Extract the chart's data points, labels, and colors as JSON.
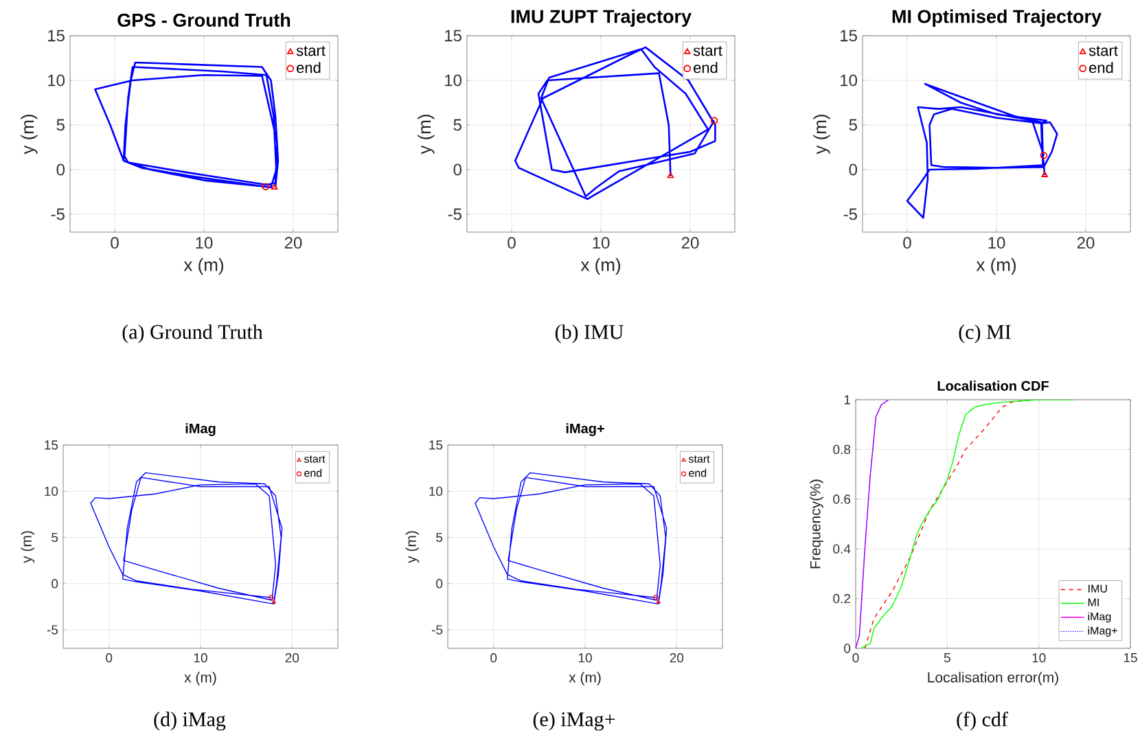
{
  "chart_data": [
    {
      "type": "line",
      "title": "GPS - Ground Truth",
      "xlabel": "x (m)",
      "ylabel": "y (m)",
      "xlim": [
        -5,
        25
      ],
      "ylim": [
        -7,
        15
      ],
      "xticks": [
        0,
        10,
        20
      ],
      "yticks": [
        -5,
        0,
        5,
        10,
        15
      ],
      "grid": true,
      "legend": "top right",
      "annotations": [
        "(a)  Ground Truth"
      ],
      "series": [
        {
          "type": "line",
          "color": "#0000ff",
          "x": [
            18,
            18.3,
            18,
            17.5,
            16.5,
            8,
            2.3,
            1.8,
            1.2,
            1,
            3,
            9,
            17.5,
            18.1,
            17.8,
            17,
            12,
            2,
            1.5,
            1.1,
            1.5,
            8,
            17,
            18,
            18.2,
            16.5,
            10,
            2,
            -2.2,
            -0.5,
            1,
            4,
            10,
            16.9
          ],
          "values": [
            -2,
            1,
            6,
            10,
            11.5,
            11.8,
            12,
            10,
            5,
            1,
            0.2,
            -0.8,
            -2,
            0,
            6,
            10.6,
            11,
            11.5,
            8,
            1.5,
            0.8,
            -0.3,
            -1.7,
            -1.5,
            3,
            10.5,
            10.6,
            10,
            9,
            5,
            1,
            0,
            -1.2,
            -1.9
          ]
        },
        {
          "type": "scatter",
          "name": "start",
          "marker": "triangle",
          "color": "#ff0000",
          "x": [
            17.9
          ],
          "values": [
            -2.0
          ]
        },
        {
          "type": "scatter",
          "name": "end",
          "marker": "circle",
          "color": "#ff0000",
          "x": [
            16.9
          ],
          "values": [
            -1.9
          ]
        }
      ]
    },
    {
      "type": "line",
      "title": "IMU ZUPT  Trajectory",
      "xlabel": "x (m)",
      "ylabel": "y (m)",
      "xlim": [
        -5,
        25
      ],
      "ylim": [
        -7,
        15
      ],
      "xticks": [
        0,
        10,
        20
      ],
      "yticks": [
        -5,
        0,
        5,
        10,
        15
      ],
      "grid": true,
      "legend": "top right",
      "annotations": [
        "(b)  IMU"
      ],
      "series": [
        {
          "type": "line",
          "color": "#0000ff",
          "x": [
            17.8,
            17.6,
            16.5,
            4,
            3,
            4.5,
            6,
            20,
            22.8,
            22.8,
            19.8,
            15,
            13.5,
            3.5,
            0.4,
            0.8,
            8.5,
            9,
            22,
            19.5,
            16,
            14.5,
            4.2,
            3.3,
            8.3,
            9.5,
            12,
            20.5,
            22.7
          ],
          "values": [
            -0.7,
            5,
            10.8,
            10,
            8.5,
            0,
            -0.3,
            2,
            3.2,
            5,
            10,
            13.7,
            13,
            8,
            1,
            0.2,
            -3.3,
            -3,
            4.5,
            8.5,
            11.5,
            13.5,
            10.3,
            8,
            -3,
            -2,
            -0.2,
            1.8,
            5.5
          ]
        },
        {
          "type": "scatter",
          "name": "start",
          "marker": "triangle",
          "color": "#ff0000",
          "x": [
            17.8
          ],
          "values": [
            -0.7
          ]
        },
        {
          "type": "scatter",
          "name": "end",
          "marker": "circle",
          "color": "#ff0000",
          "x": [
            22.7
          ],
          "values": [
            5.5
          ]
        }
      ]
    },
    {
      "type": "line",
      "title": "MI Optimised  Trajectory",
      "xlabel": "x (m)",
      "ylabel": "y (m)",
      "xlim": [
        -5,
        25
      ],
      "ylim": [
        -7,
        15
      ],
      "xticks": [
        0,
        10,
        20
      ],
      "yticks": [
        -5,
        0,
        5,
        10,
        15
      ],
      "grid": true,
      "legend": "top right",
      "annotations": [
        "(c)  MI"
      ],
      "series": [
        {
          "type": "line",
          "color": "#0000ff",
          "x": [
            15.4,
            15.2,
            15.1,
            16,
            16.8,
            16.2,
            15.3,
            10,
            4,
            2.7,
            2.5,
            3,
            5,
            10,
            15,
            15.6,
            10,
            6,
            2,
            7,
            12,
            15,
            15.2,
            8,
            2.5,
            1.5,
            0,
            1.8,
            2.3,
            2.2,
            1.2,
            3.5,
            6,
            14,
            15.3
          ],
          "values": [
            -0.6,
            1.6,
            5.2,
            5.3,
            4,
            2,
            0.3,
            0.2,
            0.3,
            0.5,
            5,
            6.2,
            6.8,
            5.8,
            5.2,
            5.5,
            6.2,
            7.5,
            9.6,
            7.8,
            6,
            5.3,
            0.5,
            0.1,
            0,
            -1.5,
            -3.5,
            -5.4,
            -1,
            3,
            7,
            6.8,
            7,
            5.5,
            1.6
          ]
        },
        {
          "type": "scatter",
          "name": "start",
          "marker": "triangle",
          "color": "#ff0000",
          "x": [
            15.4
          ],
          "values": [
            -0.6
          ]
        },
        {
          "type": "scatter",
          "name": "end",
          "marker": "circle",
          "color": "#ff0000",
          "x": [
            15.3
          ],
          "values": [
            1.6
          ]
        }
      ]
    },
    {
      "type": "line",
      "title": "iMag",
      "xlabel": "x (m)",
      "ylabel": "y (m)",
      "xlim": [
        -5,
        25
      ],
      "ylim": [
        -7,
        15
      ],
      "xticks": [
        0,
        10,
        20
      ],
      "yticks": [
        -5,
        0,
        5,
        10,
        15
      ],
      "grid": true,
      "legend": "top right",
      "annotations": [
        "(d)  iMag"
      ],
      "series": [
        {
          "type": "line",
          "color": "#0000ff",
          "x": [
            18,
            18.3,
            18.8,
            18.2,
            17,
            12,
            4,
            3,
            2,
            1.5,
            3,
            10,
            18,
            18.5,
            18.9,
            17.5,
            10,
            3.5,
            2.5,
            1.6,
            5,
            12,
            17.8,
            18.2,
            17.5,
            16,
            10,
            5,
            0,
            -1.5,
            -2,
            0,
            1.5,
            3,
            9,
            17.7
          ],
          "values": [
            -2,
            0,
            5,
            9.5,
            10.8,
            11,
            12,
            11,
            6,
            0.5,
            0.2,
            -0.8,
            -2.2,
            1,
            6,
            10.5,
            10.5,
            11.5,
            8,
            2.5,
            1.5,
            -0.5,
            -1.8,
            2,
            9.5,
            10.8,
            10.7,
            9.7,
            9.2,
            9.3,
            8.7,
            4,
            1,
            0.3,
            -0.6,
            -1.5
          ]
        },
        {
          "type": "scatter",
          "name": "start",
          "marker": "triangle",
          "color": "#ff0000",
          "x": [
            18
          ],
          "values": [
            -2
          ]
        },
        {
          "type": "scatter",
          "name": "end",
          "marker": "circle",
          "color": "#ff0000",
          "x": [
            17.7
          ],
          "values": [
            -1.5
          ]
        }
      ]
    },
    {
      "type": "line",
      "title": "iMag+",
      "xlabel": "x (m)",
      "ylabel": "y (m)",
      "xlim": [
        -5,
        25
      ],
      "ylim": [
        -7,
        15
      ],
      "xticks": [
        0,
        10,
        20
      ],
      "yticks": [
        -5,
        0,
        5,
        10,
        15
      ],
      "grid": true,
      "legend": "top right",
      "annotations": [
        "(e)  iMag+"
      ],
      "series": [
        {
          "type": "line",
          "color": "#0000ff",
          "x": [
            18,
            18.3,
            18.8,
            18.2,
            17,
            12,
            4,
            3,
            2,
            1.5,
            3,
            10,
            18,
            18.5,
            18.9,
            17.5,
            10,
            3.5,
            2.5,
            1.6,
            5,
            12,
            17.8,
            18.2,
            17.5,
            16,
            10,
            5,
            0,
            -1.5,
            -2,
            0,
            1.5,
            3,
            9,
            17.7
          ],
          "values": [
            -2,
            0,
            5,
            9.5,
            10.8,
            11,
            12,
            11,
            6,
            0.5,
            0.2,
            -0.8,
            -2.2,
            1,
            6,
            10.5,
            10.5,
            11.5,
            8,
            2.5,
            1.5,
            -0.5,
            -1.8,
            2,
            9.5,
            10.8,
            10.7,
            9.7,
            9.2,
            9.3,
            8.7,
            4,
            1,
            0.3,
            -0.6,
            -1.5
          ]
        },
        {
          "type": "scatter",
          "name": "start",
          "marker": "triangle",
          "color": "#ff0000",
          "x": [
            18
          ],
          "values": [
            -2
          ]
        },
        {
          "type": "scatter",
          "name": "end",
          "marker": "circle",
          "color": "#ff0000",
          "x": [
            17.7
          ],
          "values": [
            -1.5
          ]
        }
      ]
    },
    {
      "type": "line",
      "title": "Localisation CDF",
      "xlabel": "Localisation error(m)",
      "ylabel": "Frequency(%)",
      "xlim": [
        0,
        15
      ],
      "ylim": [
        0,
        1
      ],
      "xticks": [
        0,
        5,
        10,
        15
      ],
      "yticks": [
        0,
        0.2,
        0.4,
        0.6,
        0.8,
        1
      ],
      "grid": true,
      "legend": "bottom right",
      "annotations": [
        "(f)  cdf"
      ],
      "series": [
        {
          "name": "IMU",
          "color": "#ff0000",
          "line_style": "dashed",
          "x": [
            0.5,
            1,
            2,
            3,
            4,
            5,
            5.5,
            6,
            7,
            8,
            8.5,
            9.5
          ],
          "values": [
            0,
            0.12,
            0.23,
            0.37,
            0.55,
            0.67,
            0.73,
            0.8,
            0.88,
            0.97,
            0.99,
            1
          ]
        },
        {
          "name": "MI",
          "color": "#00ff00",
          "line_style": "solid",
          "x": [
            0.3,
            0.8,
            1,
            1.5,
            2,
            2.5,
            3,
            3.3,
            3.6,
            4,
            4.5,
            5,
            5.3,
            5.6,
            6,
            6.5,
            7,
            8,
            10,
            12
          ],
          "values": [
            0,
            0.02,
            0.08,
            0.13,
            0.17,
            0.25,
            0.37,
            0.45,
            0.5,
            0.55,
            0.6,
            0.68,
            0.75,
            0.85,
            0.94,
            0.97,
            0.98,
            0.99,
            1,
            1
          ]
        },
        {
          "name": "iMag",
          "color": "#ff00ff",
          "line_style": "solid",
          "x": [
            0,
            0.2,
            0.5,
            0.8,
            1,
            1.1,
            1.4,
            1.8
          ],
          "values": [
            0,
            0.05,
            0.4,
            0.7,
            0.85,
            0.93,
            0.98,
            1
          ]
        },
        {
          "name": "iMag+",
          "color": "#0000ff",
          "line_style": "dotted",
          "x": [
            0,
            0.2,
            0.5,
            0.8,
            1,
            1.1,
            1.4,
            1.8
          ],
          "values": [
            0,
            0.05,
            0.4,
            0.7,
            0.85,
            0.93,
            0.98,
            1
          ]
        }
      ]
    }
  ]
}
